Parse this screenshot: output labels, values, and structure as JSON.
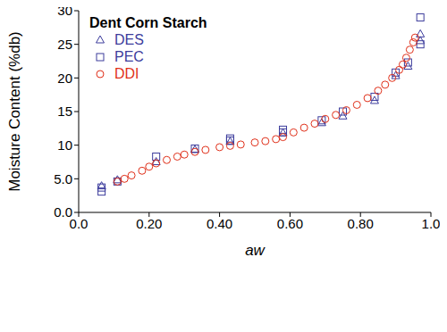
{
  "chart_data": {
    "type": "scatter",
    "title": "Dent Corn Starch",
    "x_label": "aw",
    "y_label": "Moisture Content (%db)",
    "legend": "top-left",
    "grid": false,
    "xlim": [
      0,
      1
    ],
    "xticks": [
      {
        "value": 0,
        "label": "0.0"
      },
      {
        "value": 0.2,
        "label": "0.20"
      },
      {
        "value": 0.4,
        "label": "0.40"
      },
      {
        "value": 0.6,
        "label": "0.60"
      },
      {
        "value": 0.8,
        "label": "0.80"
      },
      {
        "value": 1,
        "label": "1.0"
      }
    ],
    "ylim": [
      0,
      30
    ],
    "yticks": [
      {
        "value": 0,
        "label": "0.0"
      },
      {
        "value": 5,
        "label": "5.0"
      },
      10,
      15,
      20,
      25,
      30
    ],
    "series": [
      {
        "name": "DES",
        "color": "#3c3c9c",
        "marker": "triangle",
        "x": [
          0.065,
          0.11,
          0.22,
          0.33,
          0.43,
          0.58,
          0.69,
          0.75,
          0.84,
          0.9,
          0.935,
          0.97,
          0.97
        ],
        "values": [
          3.9,
          4.8,
          7.5,
          9.3,
          10.5,
          11.8,
          13.3,
          14.3,
          16.6,
          20.3,
          21.7,
          26.5,
          25.5
        ]
      },
      {
        "name": "PEC",
        "color": "#3c3c9c",
        "marker": "square",
        "x": [
          0.065,
          0.065,
          0.11,
          0.22,
          0.33,
          0.43,
          0.43,
          0.58,
          0.58,
          0.69,
          0.75,
          0.84,
          0.9,
          0.935,
          0.97,
          0.97
        ],
        "values": [
          3.1,
          3.7,
          4.6,
          8.3,
          9.5,
          11.0,
          10.7,
          12.3,
          11.9,
          13.7,
          15.0,
          17.2,
          20.8,
          22.3,
          29.0,
          25.0
        ]
      },
      {
        "name": "DDI",
        "color": "#e0301a",
        "marker": "circle",
        "x": [
          0.11,
          0.13,
          0.15,
          0.18,
          0.2,
          0.22,
          0.25,
          0.28,
          0.3,
          0.33,
          0.36,
          0.4,
          0.43,
          0.46,
          0.5,
          0.53,
          0.56,
          0.58,
          0.61,
          0.64,
          0.67,
          0.7,
          0.73,
          0.76,
          0.79,
          0.82,
          0.85,
          0.87,
          0.89,
          0.91,
          0.92,
          0.93,
          0.94,
          0.95,
          0.955
        ],
        "values": [
          4.6,
          5.0,
          5.5,
          6.2,
          6.8,
          7.3,
          7.8,
          8.3,
          8.6,
          9.0,
          9.3,
          9.7,
          9.9,
          10.1,
          10.4,
          10.6,
          10.9,
          11.2,
          11.9,
          12.6,
          13.2,
          13.9,
          14.5,
          15.2,
          16.0,
          17.0,
          18.1,
          19.0,
          20.0,
          21.2,
          22.0,
          23.0,
          24.2,
          25.3,
          26.0
        ]
      }
    ]
  }
}
